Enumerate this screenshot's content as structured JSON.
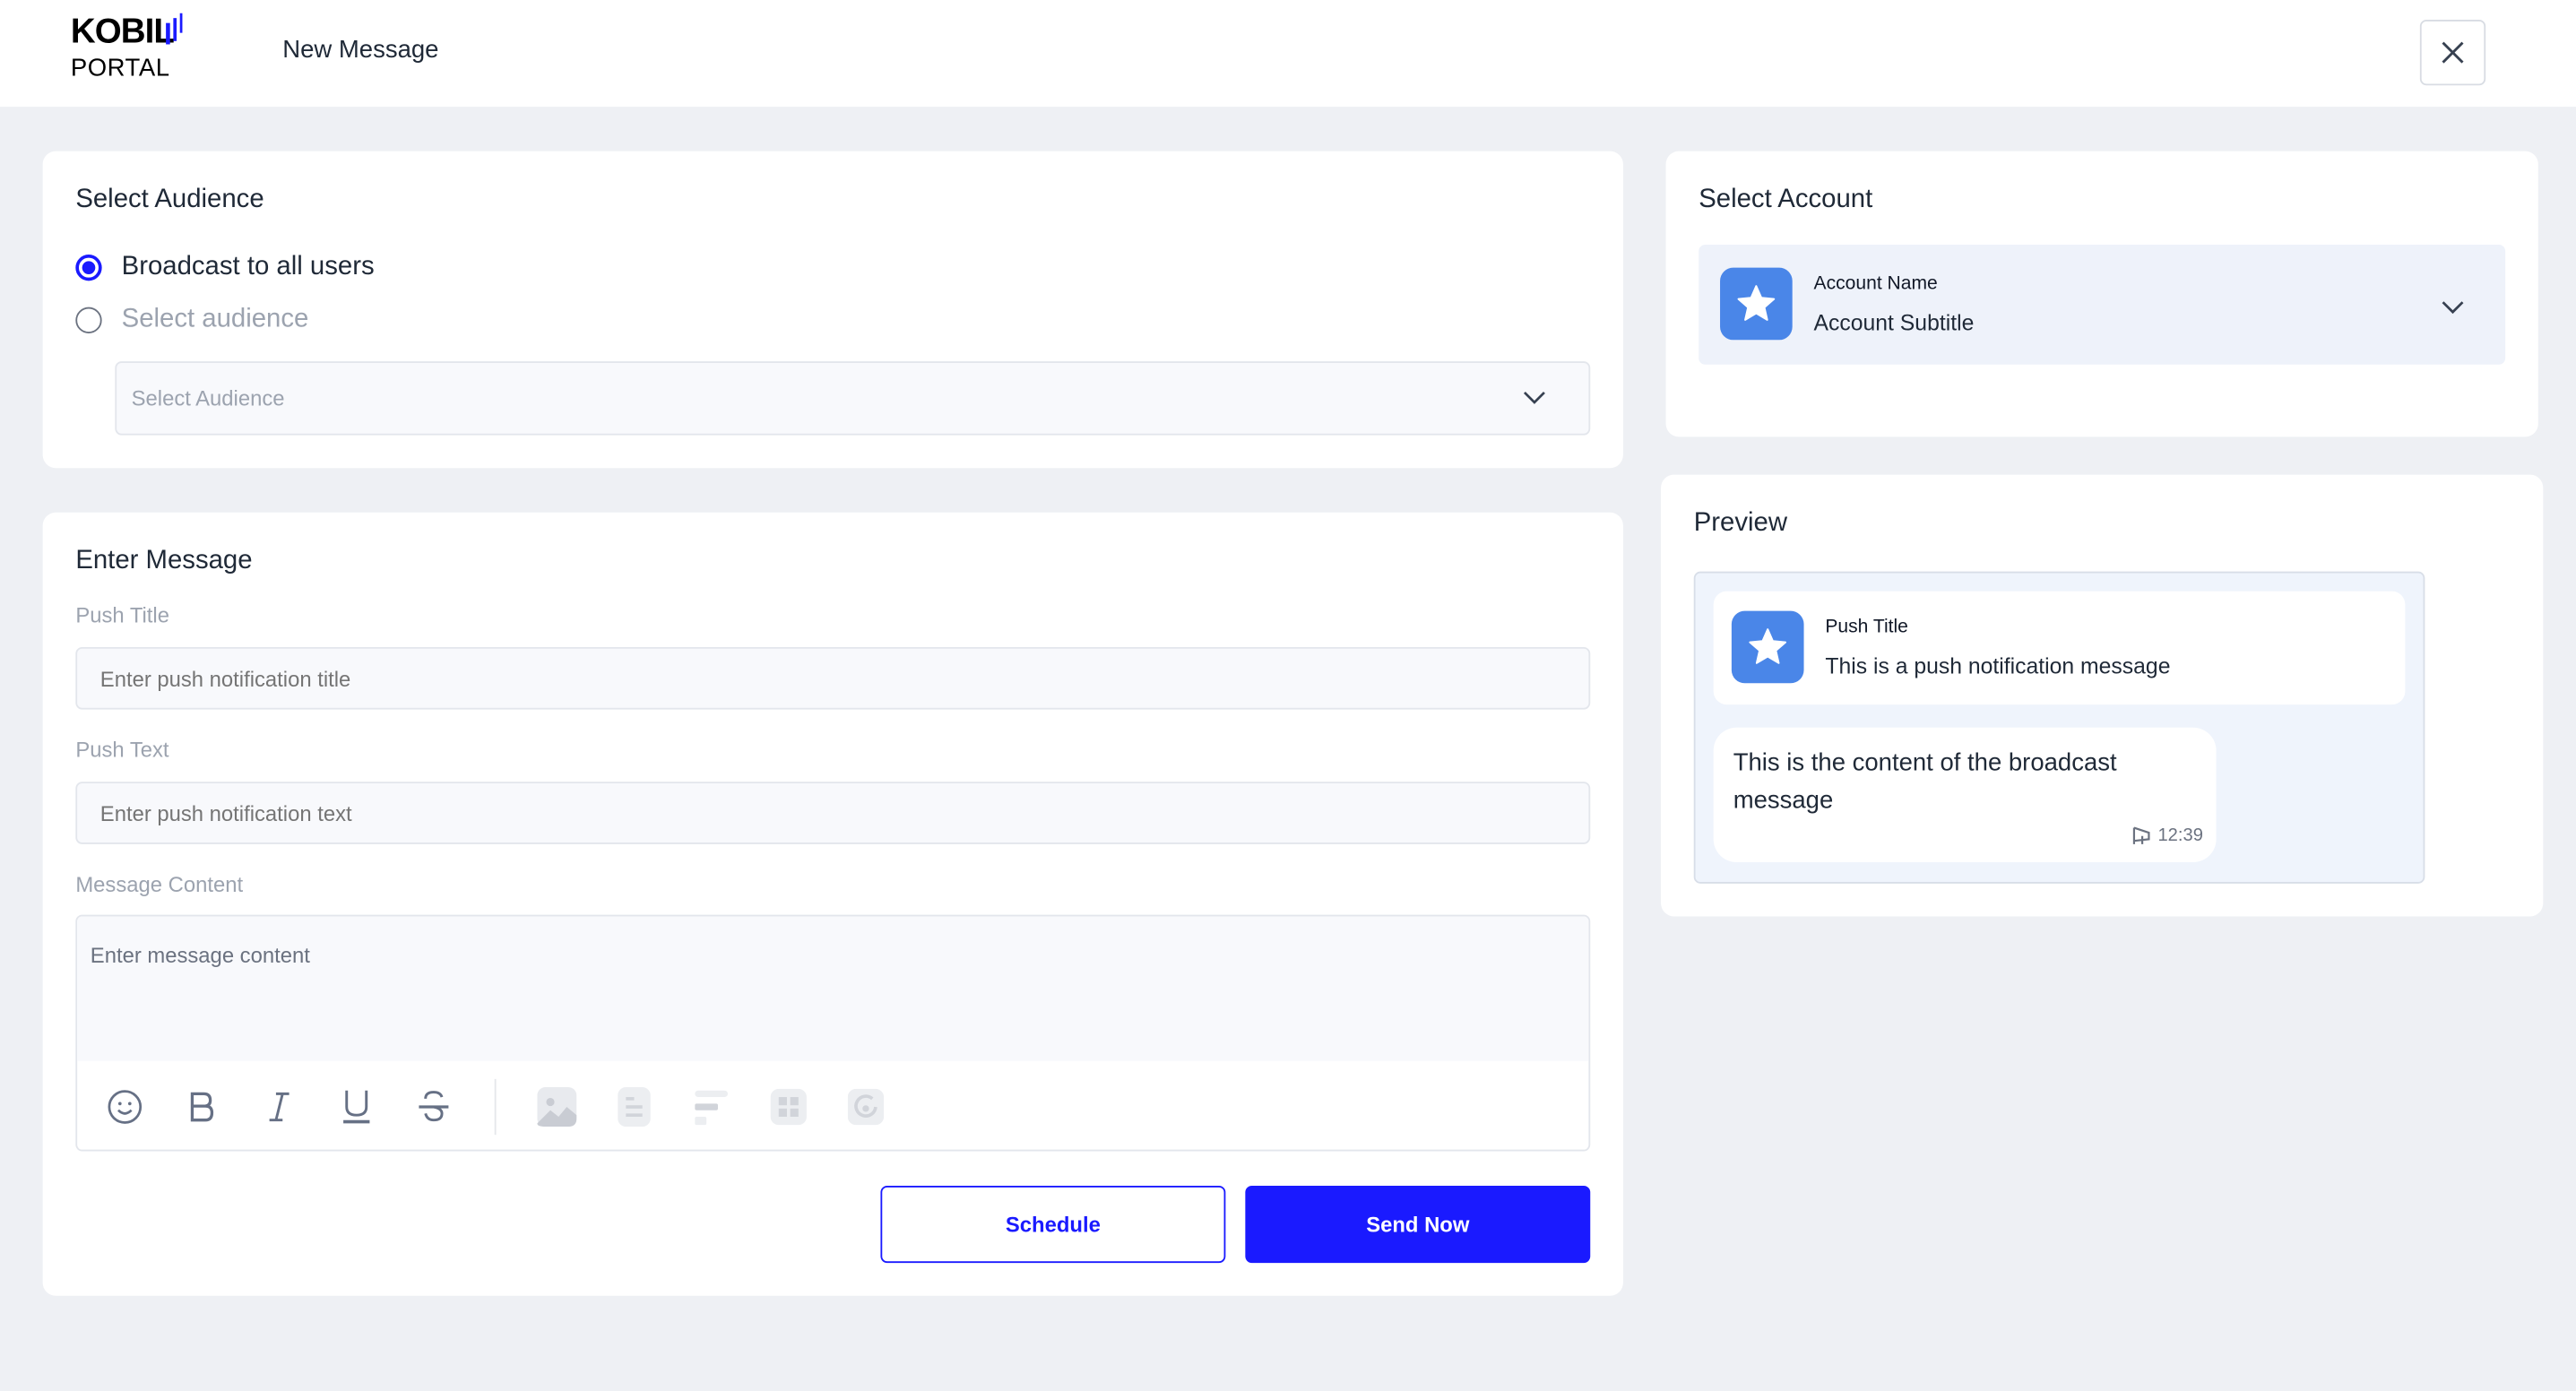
{
  "header": {
    "logo_top": "KOBIL",
    "logo_bottom": "PORTAL",
    "title": "New Message",
    "close_icon": "close-icon"
  },
  "audience": {
    "heading": "Select Audience",
    "option_all": "Broadcast to all users",
    "option_select": "Select audience",
    "selected": "Broadcast to all users",
    "dropdown_placeholder": "Select Audience"
  },
  "message": {
    "heading": "Enter Message",
    "push_title_label": "Push Title",
    "push_title_placeholder": "Enter push notification title",
    "push_text_label": "Push Text",
    "push_text_placeholder": "Enter push notification text",
    "content_label": "Message Content",
    "content_placeholder": "Enter message content",
    "toolbar": [
      "emoji-icon",
      "bold-icon",
      "italic-icon",
      "underline-icon",
      "strikethrough-icon",
      "image-icon",
      "list-icon",
      "align-icon",
      "grid-icon",
      "refresh-icon"
    ]
  },
  "actions": {
    "schedule": "Schedule",
    "send_now": "Send Now"
  },
  "account": {
    "heading": "Select Account",
    "name": "Account Name",
    "subtitle": "Account Subtitle"
  },
  "preview": {
    "heading": "Preview",
    "push_title": "Push Title",
    "push_text": "This is a push notification message",
    "content": "This is the content of the broadcast message",
    "time": "12:39"
  },
  "colors": {
    "accent": "#1a1aff",
    "icon_bg": "#4a86e8",
    "page_bg": "#eef0f4",
    "preview_bg": "#eff4fc"
  }
}
